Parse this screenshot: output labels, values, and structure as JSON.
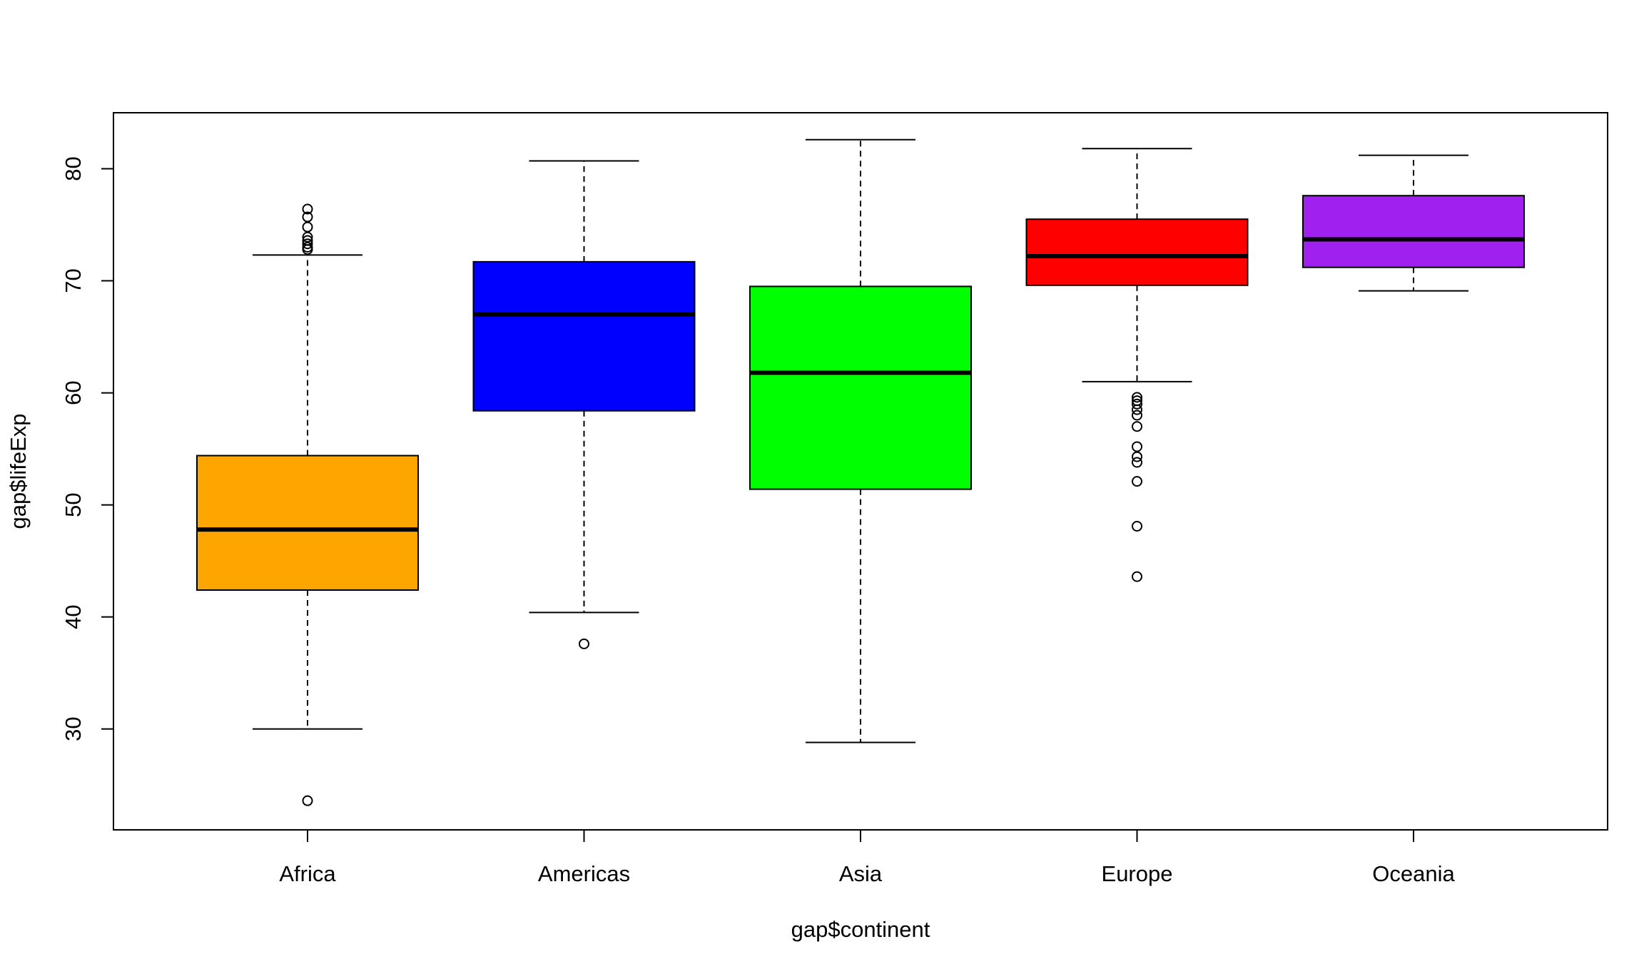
{
  "chart_data": {
    "type": "boxplot",
    "title": "",
    "xlabel": "gap$continent",
    "ylabel": "gap$lifeExp",
    "ylim": [
      21,
      85
    ],
    "yticks": [
      30,
      40,
      50,
      60,
      70,
      80
    ],
    "grid": false,
    "categories": [
      "Africa",
      "Americas",
      "Asia",
      "Europe",
      "Oceania"
    ],
    "boxes": [
      {
        "category": "Africa",
        "color": "#FFA500",
        "whisker_low": 30.0,
        "q1": 42.4,
        "median": 47.8,
        "q3": 54.4,
        "whisker_high": 72.3,
        "outliers": [
          23.6,
          72.8,
          73.0,
          73.3,
          73.6,
          73.9,
          74.8,
          75.7,
          76.4
        ]
      },
      {
        "category": "Americas",
        "color": "#0000FF",
        "whisker_low": 40.4,
        "q1": 58.4,
        "median": 67.0,
        "q3": 71.7,
        "whisker_high": 80.7,
        "outliers": [
          37.6
        ]
      },
      {
        "category": "Asia",
        "color": "#00FF00",
        "whisker_low": 28.8,
        "q1": 51.4,
        "median": 61.8,
        "q3": 69.5,
        "whisker_high": 82.6,
        "outliers": []
      },
      {
        "category": "Europe",
        "color": "#FF0000",
        "whisker_low": 61.0,
        "q1": 69.6,
        "median": 72.2,
        "q3": 75.5,
        "whisker_high": 81.8,
        "outliers": [
          43.6,
          48.1,
          52.1,
          53.8,
          54.3,
          55.2,
          57.0,
          58.0,
          58.5,
          59.0,
          59.3,
          59.6
        ]
      },
      {
        "category": "Oceania",
        "color": "#A020F0",
        "whisker_low": 69.1,
        "q1": 71.2,
        "median": 73.7,
        "q3": 77.6,
        "whisker_high": 81.2,
        "outliers": []
      }
    ]
  }
}
